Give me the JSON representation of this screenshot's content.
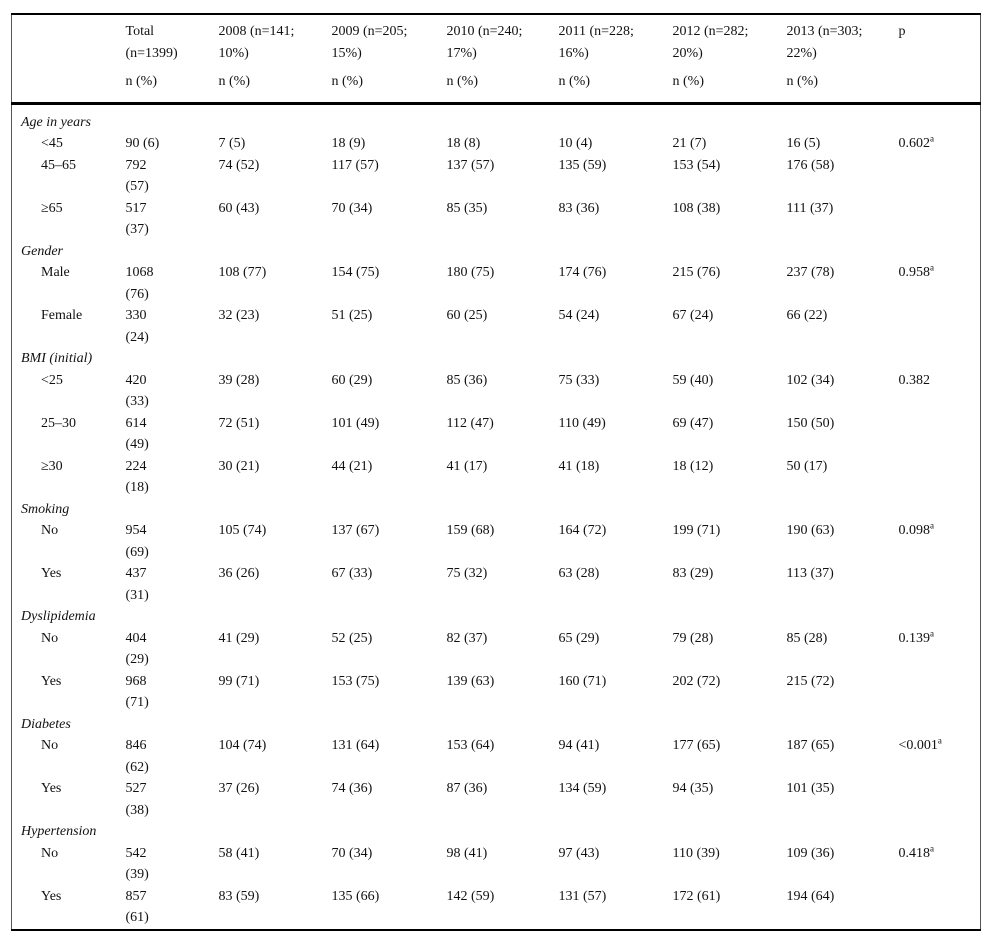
{
  "table": {
    "header": {
      "row_label": "",
      "cols": [
        {
          "title": "Total\n(n=1399)",
          "subtitle": "n (%)"
        },
        {
          "title": "2008 (n=141;\n10%)",
          "subtitle": "n (%)"
        },
        {
          "title": "2009 (n=205;\n15%)",
          "subtitle": "n (%)"
        },
        {
          "title": "2010 (n=240;\n17%)",
          "subtitle": "n (%)"
        },
        {
          "title": "2011 (n=228;\n16%)",
          "subtitle": "n (%)"
        },
        {
          "title": "2012 (n=282;\n20%)",
          "subtitle": "n (%)"
        },
        {
          "title": "2013 (n=303;\n22%)",
          "subtitle": "n (%)"
        }
      ],
      "p_col": {
        "title": "p"
      }
    },
    "sections": [
      {
        "name": "Age in years",
        "rows": [
          {
            "label": "<45",
            "total": "90 (6)",
            "y2008": "7 (5)",
            "y2009": "18 (9)",
            "y2010": "18 (8)",
            "y2011": "10 (4)",
            "y2012": "21 (7)",
            "y2013": "16 (5)",
            "p": "0.602",
            "p_sup": "a"
          },
          {
            "label": "45–65",
            "total": "792\n(57)",
            "y2008": "74 (52)",
            "y2009": "117 (57)",
            "y2010": "137 (57)",
            "y2011": "135 (59)",
            "y2012": "153 (54)",
            "y2013": "176 (58)",
            "p": "",
            "p_sup": ""
          },
          {
            "label": "≥65",
            "total": "517\n(37)",
            "y2008": "60 (43)",
            "y2009": "70 (34)",
            "y2010": "85 (35)",
            "y2011": "83 (36)",
            "y2012": "108 (38)",
            "y2013": "111 (37)",
            "p": "",
            "p_sup": ""
          }
        ]
      },
      {
        "name": "Gender",
        "rows": [
          {
            "label": "Male",
            "total": "1068\n(76)",
            "y2008": "108 (77)",
            "y2009": "154 (75)",
            "y2010": "180 (75)",
            "y2011": "174 (76)",
            "y2012": "215 (76)",
            "y2013": "237 (78)",
            "p": "0.958",
            "p_sup": "a"
          },
          {
            "label": "Female",
            "total": "330\n(24)",
            "y2008": "32 (23)",
            "y2009": "51 (25)",
            "y2010": "60 (25)",
            "y2011": "54 (24)",
            "y2012": "67 (24)",
            "y2013": "66 (22)",
            "p": "",
            "p_sup": ""
          }
        ]
      },
      {
        "name": "BMI (initial)",
        "rows": [
          {
            "label": "<25",
            "total": "420\n(33)",
            "y2008": "39 (28)",
            "y2009": "60 (29)",
            "y2010": "85 (36)",
            "y2011": "75 (33)",
            "y2012": "59 (40)",
            "y2013": "102 (34)",
            "p": "0.382",
            "p_sup": ""
          },
          {
            "label": "25–30",
            "total": "614\n(49)",
            "y2008": "72 (51)",
            "y2009": "101 (49)",
            "y2010": "112 (47)",
            "y2011": "110 (49)",
            "y2012": "69 (47)",
            "y2013": "150 (50)",
            "p": "",
            "p_sup": ""
          },
          {
            "label": "≥30",
            "total": "224\n(18)",
            "y2008": "30 (21)",
            "y2009": "44 (21)",
            "y2010": "41 (17)",
            "y2011": "41 (18)",
            "y2012": "18 (12)",
            "y2013": "50 (17)",
            "p": "",
            "p_sup": ""
          }
        ]
      },
      {
        "name": "Smoking",
        "rows": [
          {
            "label": "No",
            "total": "954\n(69)",
            "y2008": "105 (74)",
            "y2009": "137 (67)",
            "y2010": "159 (68)",
            "y2011": "164 (72)",
            "y2012": "199 (71)",
            "y2013": "190 (63)",
            "p": "0.098",
            "p_sup": "a"
          },
          {
            "label": "Yes",
            "total": "437\n(31)",
            "y2008": "36 (26)",
            "y2009": "67 (33)",
            "y2010": "75 (32)",
            "y2011": "63 (28)",
            "y2012": "83 (29)",
            "y2013": "113 (37)",
            "p": "",
            "p_sup": ""
          }
        ]
      },
      {
        "name": "Dyslipidemia",
        "rows": [
          {
            "label": "No",
            "total": "404\n(29)",
            "y2008": "41 (29)",
            "y2009": "52 (25)",
            "y2010": "82 (37)",
            "y2011": "65 (29)",
            "y2012": "79 (28)",
            "y2013": "85 (28)",
            "p": "0.139",
            "p_sup": "a"
          },
          {
            "label": "Yes",
            "total": "968\n(71)",
            "y2008": "99 (71)",
            "y2009": "153 (75)",
            "y2010": "139 (63)",
            "y2011": "160 (71)",
            "y2012": "202 (72)",
            "y2013": "215 (72)",
            "p": "",
            "p_sup": ""
          }
        ]
      },
      {
        "name": "Diabetes",
        "rows": [
          {
            "label": "No",
            "total": "846\n(62)",
            "y2008": "104 (74)",
            "y2009": "131 (64)",
            "y2010": "153 (64)",
            "y2011": "94 (41)",
            "y2012": "177 (65)",
            "y2013": "187 (65)",
            "p": "<0.001",
            "p_sup": "a"
          },
          {
            "label": "Yes",
            "total": "527\n(38)",
            "y2008": "37 (26)",
            "y2009": "74 (36)",
            "y2010": "87 (36)",
            "y2011": "134 (59)",
            "y2012": "94 (35)",
            "y2013": "101 (35)",
            "p": "",
            "p_sup": ""
          }
        ]
      },
      {
        "name": "Hypertension",
        "rows": [
          {
            "label": "No",
            "total": "542\n(39)",
            "y2008": "58 (41)",
            "y2009": "70 (34)",
            "y2010": "98 (41)",
            "y2011": "97 (43)",
            "y2012": "110 (39)",
            "y2013": "109 (36)",
            "p": "0.418",
            "p_sup": "a"
          },
          {
            "label": "Yes",
            "total": "857\n(61)",
            "y2008": "83 (59)",
            "y2009": "135 (66)",
            "y2010": "142 (59)",
            "y2011": "131 (57)",
            "y2012": "172 (61)",
            "y2013": "194 (64)",
            "p": "",
            "p_sup": ""
          }
        ]
      }
    ]
  }
}
